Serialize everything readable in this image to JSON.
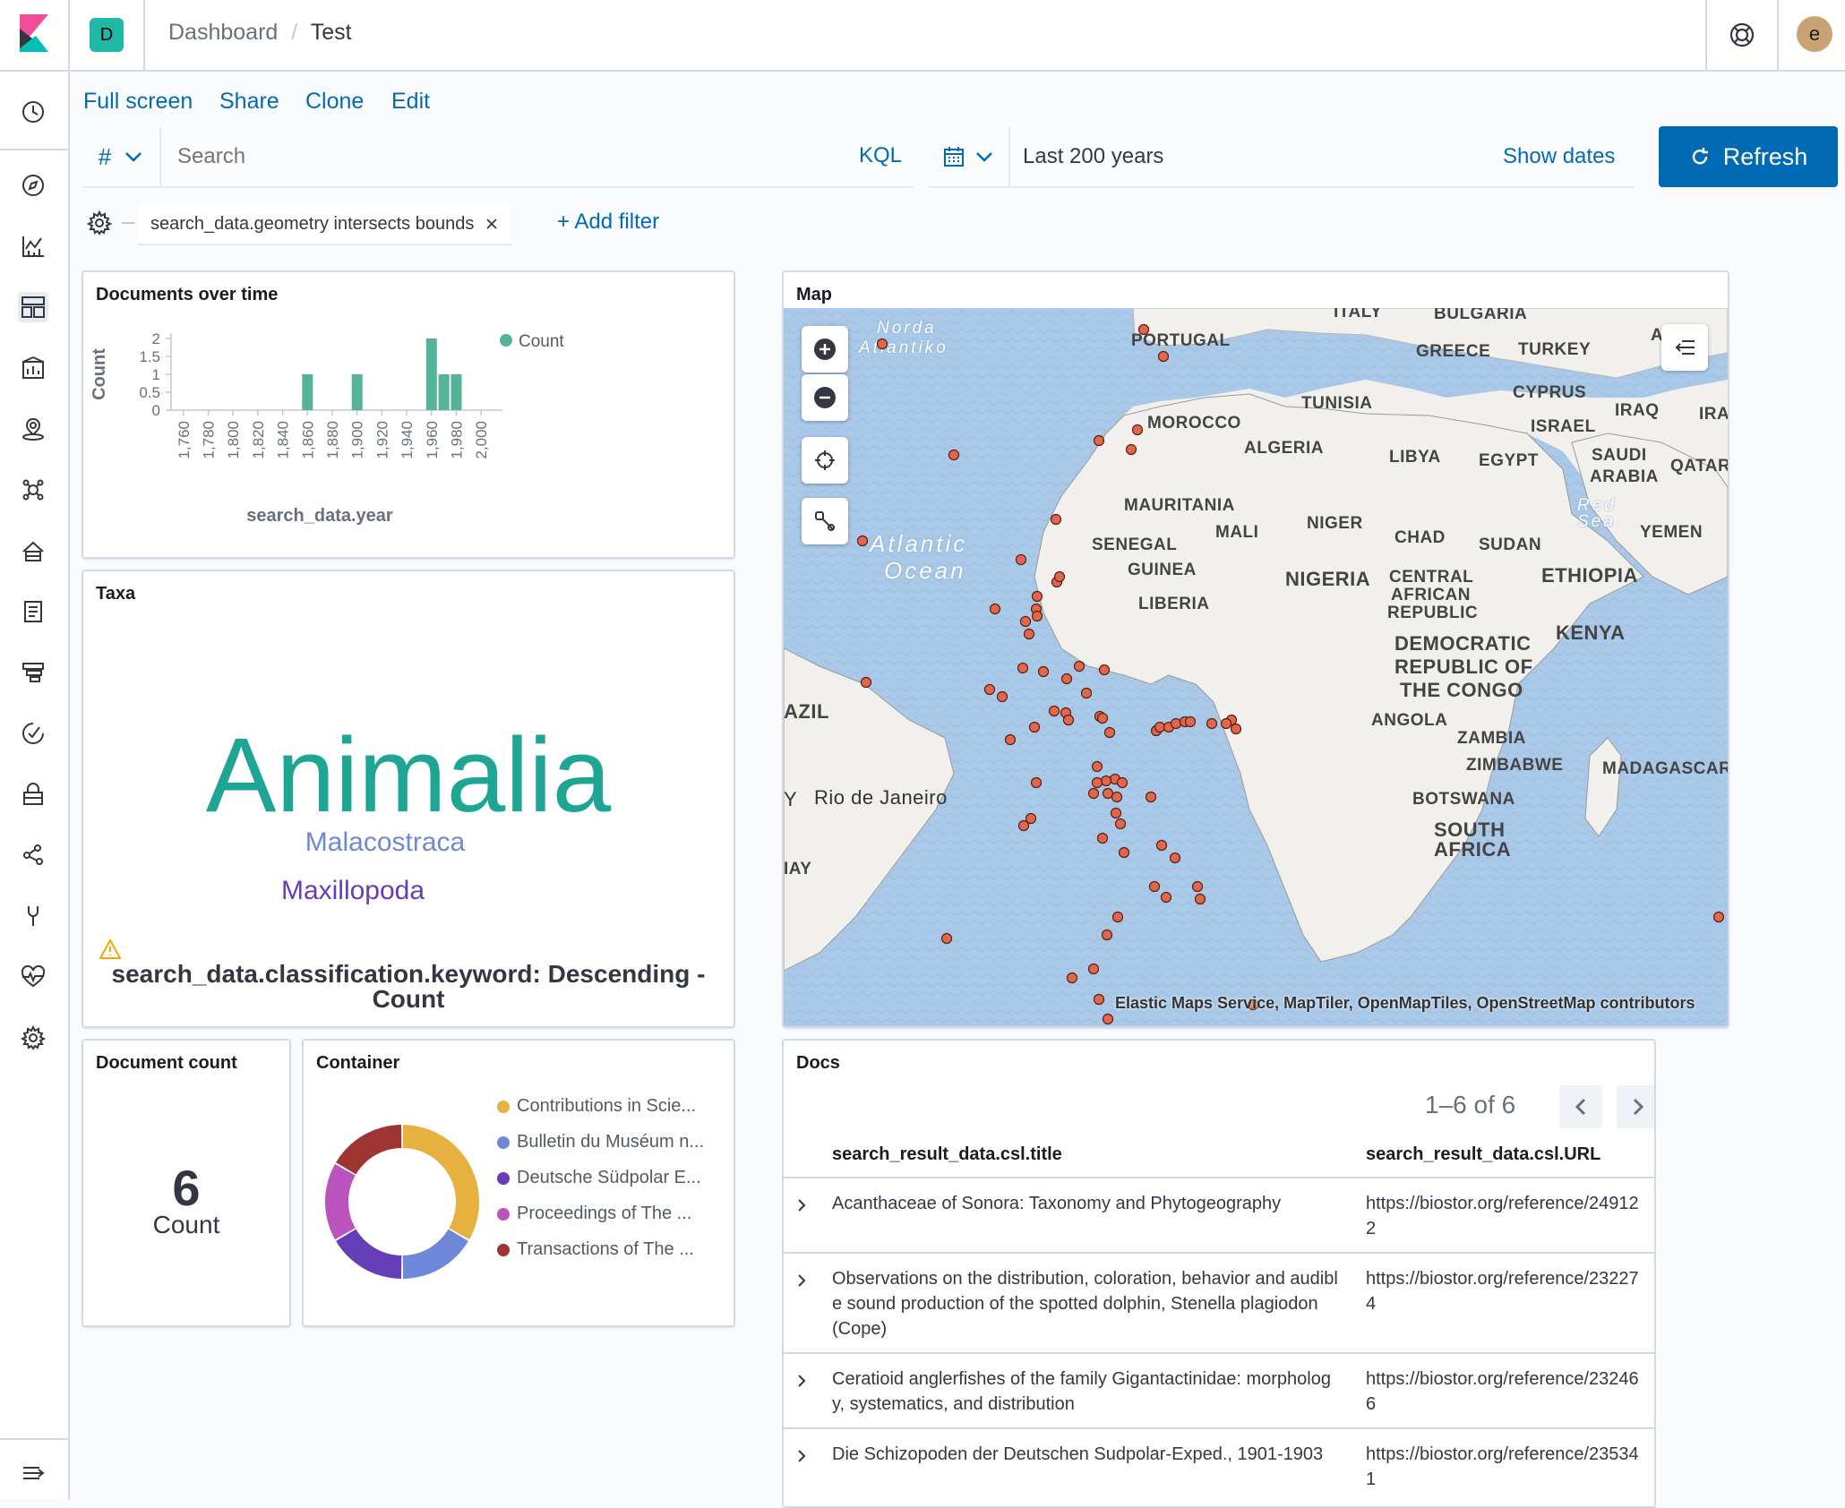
{
  "header": {
    "app_badge": "D",
    "breadcrumb_root": "Dashboard",
    "breadcrumb_separator": "/",
    "breadcrumb_current": "Test",
    "user_initial": "e"
  },
  "actions": {
    "full_screen": "Full screen",
    "share": "Share",
    "clone": "Clone",
    "edit": "Edit"
  },
  "query": {
    "field_type_symbol": "#",
    "search_placeholder": "Search",
    "language": "KQL",
    "time_range": "Last 200 years",
    "show_dates": "Show dates",
    "refresh_label": "Refresh"
  },
  "filters": {
    "pill_label": "search_data.geometry intersects bounds",
    "add_filter": "+ Add filter"
  },
  "panels": {
    "documents_over_time": {
      "title": "Documents over time"
    },
    "taxa": {
      "title": "Taxa",
      "words": [
        "Animalia",
        "Malacostraca",
        "Maxillopoda"
      ],
      "warning_text": "search_data.classification.keyword: Descending - Count"
    },
    "document_count": {
      "title": "Document count",
      "value": "6",
      "label": "Count"
    },
    "container": {
      "title": "Container",
      "legend": [
        {
          "label": "Contributions in Scie...",
          "color": "#e7b13f"
        },
        {
          "label": "Bulletin du Muséum n...",
          "color": "#6f87d8"
        },
        {
          "label": "Deutsche Südpolar E...",
          "color": "#663db8"
        },
        {
          "label": "Proceedings of The ...",
          "color": "#bc52bc"
        },
        {
          "label": "Transactions of The ...",
          "color": "#9e3533"
        }
      ]
    },
    "map": {
      "title": "Map",
      "attribution": "Elastic Maps Service, MapTiler, OpenMapTiles, OpenStreetMap contributors",
      "labels": {
        "north_atlantic_1": "Norda",
        "north_atlantic_2": "Atlantiko",
        "portugal": "PORTUGAL",
        "italy": "ITALY",
        "bulgaria": "BULGARIA",
        "greece": "GREECE",
        "turkey": "TURKEY",
        "azer": "AZER",
        "cyprus": "CYPRUS",
        "iraq": "IRAQ",
        "ira": "IRA",
        "tunisia": "TUNISIA",
        "morocco": "MOROCCO",
        "israel": "ISRAEL",
        "algeria": "ALGERIA",
        "libya": "LIBYA",
        "egypt": "EGYPT",
        "saudi_1": "SAUDI",
        "saudi_2": "ARABIA",
        "qatar": "QATAR",
        "mauritania": "MAURITANIA",
        "red_sea_1": "Red",
        "red_sea_2": "Sea",
        "mali": "MALI",
        "niger": "NIGER",
        "yemen": "YEMEN",
        "atlantic_1": "Atlantic",
        "atlantic_2": "Ocean",
        "senegal": "SENEGAL",
        "chad": "CHAD",
        "sudan": "SUDAN",
        "guinea": "GUINEA",
        "nigeria": "NIGERIA",
        "car_1": "CENTRAL",
        "car_2": "AFRICAN",
        "car_3": "REPUBLIC",
        "ethiopia": "ETHIOPIA",
        "liberia": "LIBERIA",
        "kenya": "KENYA",
        "drc_1": "DEMOCRATIC",
        "drc_2": "REPUBLIC OF",
        "drc_3": "THE CONGO",
        "azil": "AZIL",
        "angola": "ANGOLA",
        "zambia": "ZAMBIA",
        "zimbabwe": "ZIMBABWE",
        "madagascar": "MADAGASCAR",
        "rio": "Rio de Janeiro",
        "y": "Y",
        "botswana": "BOTSWANA",
        "south_1": "SOUTH",
        "south_2": "AFRICA",
        "iay": "IAY"
      }
    },
    "docs": {
      "title": "Docs",
      "pagination": "1–6 of 6",
      "columns": [
        "search_result_data.csl.title",
        "search_result_data.csl.URL"
      ],
      "rows": [
        {
          "title": "Acanthaceae of Sonora: Taxonomy and Phytogeography",
          "url": "https://biostor.org/reference/249122"
        },
        {
          "title": "Observations on the distribution, coloration, behavior and audible sound production of the spotted dolphin, Stenella plagiodon (Cope)",
          "url": "https://biostor.org/reference/232274"
        },
        {
          "title": "Ceratioid anglerfishes of the family Gigantactinidae: morphology, systematics, and distribution",
          "url": "https://biostor.org/reference/232466"
        },
        {
          "title": "Die Schizopoden der Deutschen Sudpolar-Exped., 1901-1903",
          "url": "https://biostor.org/reference/235341"
        }
      ]
    }
  },
  "chart_data": [
    {
      "type": "bar",
      "title": "Documents over time",
      "xlabel": "search_data.year",
      "ylabel": "Count",
      "legend": [
        "Count"
      ],
      "x_ticks": [
        "1,760",
        "1,780",
        "1,800",
        "1,820",
        "1,840",
        "1,860",
        "1,880",
        "1,900",
        "1,920",
        "1,940",
        "1,960",
        "1,980",
        "2,000"
      ],
      "y_ticks": [
        "0",
        "0.5",
        "1",
        "1.5",
        "2"
      ],
      "xlim": [
        1750,
        2010
      ],
      "ylim": [
        0,
        2
      ],
      "x": [
        1860,
        1900,
        1960,
        1970,
        1980
      ],
      "values": [
        1,
        1,
        2,
        1,
        1
      ],
      "color": "#54b399"
    },
    {
      "type": "pie",
      "title": "Container",
      "categories": [
        "Contributions in Scie...",
        "Bulletin du Muséum n...",
        "Deutsche Südpolar E...",
        "Proceedings of The ...",
        "Transactions of The ..."
      ],
      "values": [
        2,
        1,
        1,
        1,
        1
      ],
      "colors": [
        "#e7b13f",
        "#6f87d8",
        "#663db8",
        "#bc52bc",
        "#9e3533"
      ],
      "donut": true
    }
  ]
}
